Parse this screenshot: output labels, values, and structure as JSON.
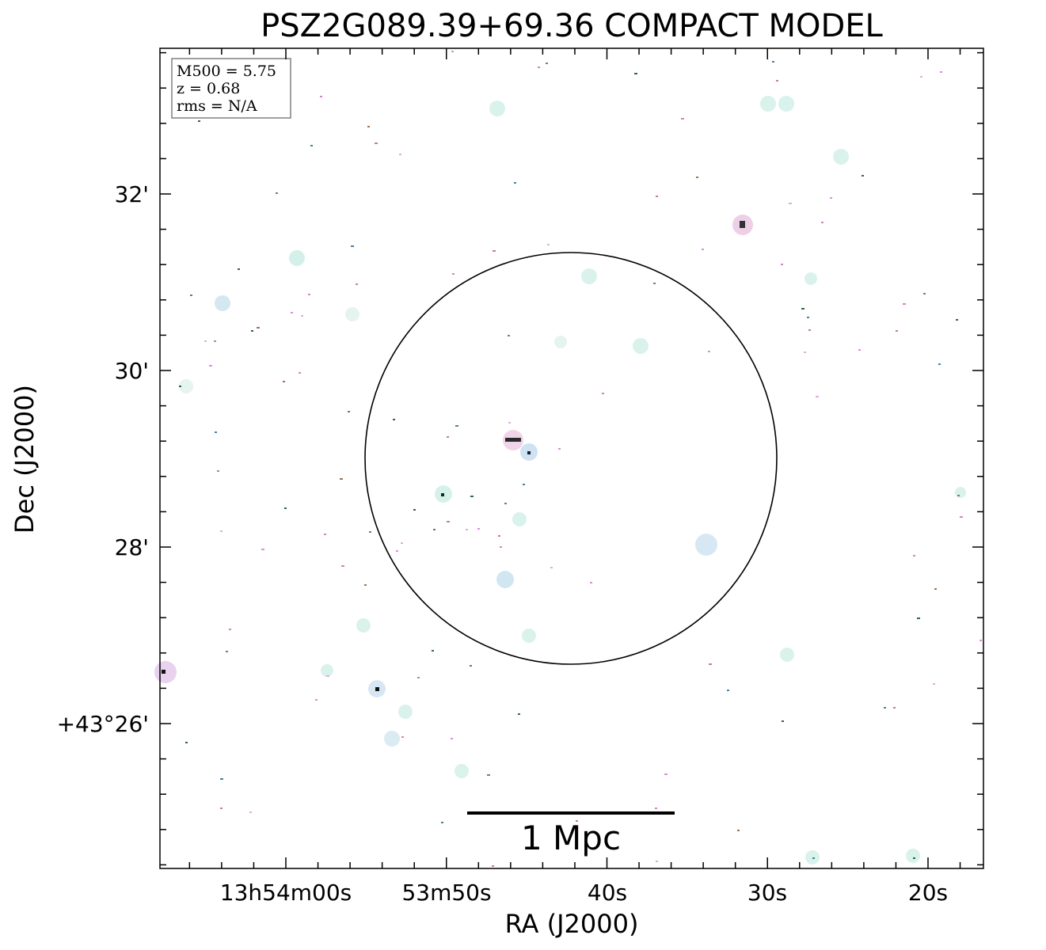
{
  "title": "PSZ2G089.39+69.36 COMPACT MODEL",
  "xlabel": "RA (J2000)",
  "ylabel": "Dec (J2000)",
  "ra_ticks": [
    "13h54m00s",
    "53m50s",
    "40s",
    "30s",
    "20s"
  ],
  "dec_ticks": [
    "32'",
    "30'",
    "28'",
    "+43°26'"
  ],
  "info_box": {
    "line1": "M500 = 5.75",
    "line2": "z = 0.68",
    "line3": "rms = N/A"
  },
  "scale_bar": {
    "label": "1 Mpc"
  },
  "colors": {
    "axes": "#000000",
    "halo": "#cfeee6",
    "pink": "#d27ad8",
    "dark_green": "#0d4a2e"
  }
}
